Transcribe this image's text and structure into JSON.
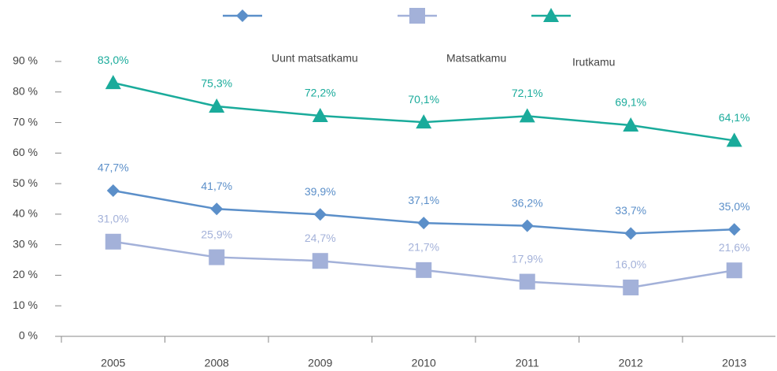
{
  "chart_data": {
    "type": "line",
    "categories": [
      "2005",
      "2008",
      "2009",
      "2010",
      "2011",
      "2012",
      "2013"
    ],
    "series": [
      {
        "name": "Uunt matsatkamu",
        "color": "#5b8fc9",
        "marker": "diamond",
        "values": [
          47.7,
          41.7,
          39.9,
          37.1,
          36.2,
          33.7,
          35.0
        ],
        "value_labels": [
          "47,7%",
          "41,7%",
          "39,9%",
          "37,1%",
          "36,2%",
          "33,7%",
          "35,0%"
        ]
      },
      {
        "name": "Matsatkamu",
        "color": "#a3b1d9",
        "marker": "square",
        "values": [
          31.0,
          25.9,
          24.7,
          21.7,
          17.9,
          16.0,
          21.6
        ],
        "value_labels": [
          "31,0%",
          "25,9%",
          "24,7%",
          "21,7%",
          "17,9%",
          "16,0%",
          "21,6%"
        ]
      },
      {
        "name": "Irutkamu",
        "color": "#1aab9b",
        "marker": "triangle",
        "values": [
          83.0,
          75.3,
          72.2,
          70.1,
          72.1,
          69.1,
          64.1
        ],
        "value_labels": [
          "83,0%",
          "75,3%",
          "72,2%",
          "70,1%",
          "72,1%",
          "69,1%",
          "64,1%"
        ]
      }
    ],
    "ylim": [
      0,
      90
    ],
    "yticks": [
      {
        "value": 0,
        "label": "0 %"
      },
      {
        "value": 10,
        "label": "10 %"
      },
      {
        "value": 20,
        "label": "20 %"
      },
      {
        "value": 30,
        "label": "30 %"
      },
      {
        "value": 40,
        "label": "40 %"
      },
      {
        "value": 50,
        "label": "50 %"
      },
      {
        "value": 60,
        "label": "60 %"
      },
      {
        "value": 70,
        "label": "70 %"
      },
      {
        "value": 80,
        "label": "80 %"
      },
      {
        "value": 90,
        "label": "90 %"
      }
    ],
    "grid": false
  }
}
